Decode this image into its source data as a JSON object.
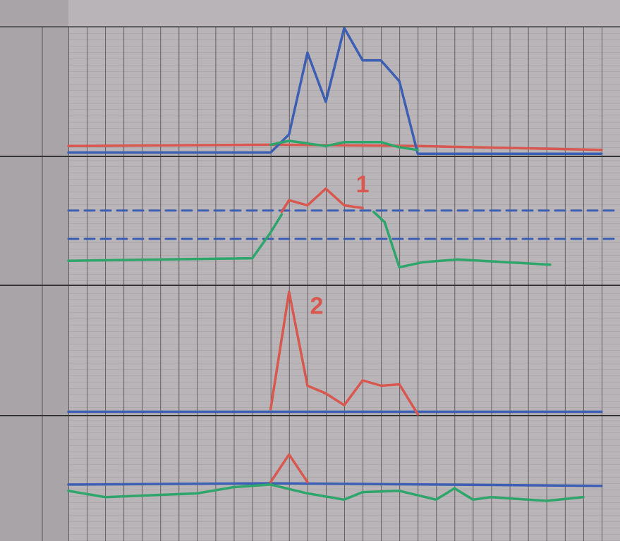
{
  "chart_data": [
    {
      "type": "line",
      "xlim": [
        0,
        30
      ],
      "ylim": [
        0,
        100
      ],
      "series": [
        {
          "color": "#d8574f",
          "x": [
            0,
            11,
            19,
            29
          ],
          "values": [
            8,
            9,
            8,
            5
          ]
        },
        {
          "color": "#3d5fb3",
          "x": [
            0,
            11,
            12,
            13,
            14,
            15,
            16,
            17,
            18,
            19,
            29
          ],
          "values": [
            3,
            3,
            17,
            80,
            42,
            99,
            74,
            74,
            58,
            2,
            2
          ]
        },
        {
          "color": "#2ea56b",
          "x": [
            11,
            12,
            13,
            14,
            15,
            17,
            18,
            19
          ],
          "values": [
            9,
            12,
            10,
            8,
            11,
            11,
            7,
            5
          ]
        }
      ]
    },
    {
      "type": "line",
      "xlim": [
        0,
        30
      ],
      "ylim": [
        0,
        100
      ],
      "series": [
        {
          "color": "#3d5fb3",
          "dashed": true,
          "x": [
            0,
            30
          ],
          "values": [
            58,
            58
          ]
        },
        {
          "color": "#3d5fb3",
          "dashed": true,
          "x": [
            0,
            30
          ],
          "values": [
            36,
            36
          ]
        },
        {
          "color": "#2ea56b",
          "x": [
            0,
            10,
            11,
            11.6,
            14,
            16.6,
            17.2,
            18,
            19.3,
            21.2,
            26.2
          ],
          "values": [
            19,
            21,
            41,
            55,
            null,
            57,
            49,
            14,
            18,
            20,
            16
          ]
        },
        {
          "color": "#d8574f",
          "x": [
            11.6,
            12,
            13,
            14,
            15,
            16
          ],
          "values": [
            57,
            66,
            62,
            75,
            62,
            60
          ]
        }
      ],
      "annotations": [
        {
          "text": "1",
          "x": 16,
          "y": 77,
          "color": "#d8574f"
        }
      ]
    },
    {
      "type": "line",
      "xlim": [
        0,
        30
      ],
      "ylim": [
        0,
        100
      ],
      "series": [
        {
          "color": "#3d5fb3",
          "x": [
            0,
            29
          ],
          "values": [
            3,
            3
          ]
        },
        {
          "color": "#d8574f",
          "x": [
            11,
            12,
            13,
            14,
            15,
            16,
            17,
            18,
            19
          ],
          "values": [
            5,
            95,
            23,
            17,
            8,
            27,
            23,
            24,
            1
          ]
        }
      ],
      "annotations": [
        {
          "text": "2",
          "x": 13.5,
          "y": 83,
          "color": "#d8574f"
        }
      ]
    },
    {
      "type": "line",
      "xlim": [
        0,
        30
      ],
      "ylim": [
        0,
        100
      ],
      "series": [
        {
          "color": "#3d5fb3",
          "x": [
            0,
            11,
            29
          ],
          "values": [
            45,
            46,
            44
          ]
        },
        {
          "color": "#d8574f",
          "x": [
            11,
            12,
            13
          ],
          "values": [
            47,
            69,
            47
          ]
        },
        {
          "color": "#2ea56b",
          "x": [
            0,
            2,
            7,
            9,
            11,
            13,
            15,
            16,
            18,
            20,
            21,
            22,
            23,
            26,
            28
          ],
          "values": [
            40,
            35,
            38,
            43,
            45,
            38,
            33,
            39,
            40,
            33,
            42,
            33,
            35,
            32,
            35
          ]
        }
      ]
    }
  ]
}
